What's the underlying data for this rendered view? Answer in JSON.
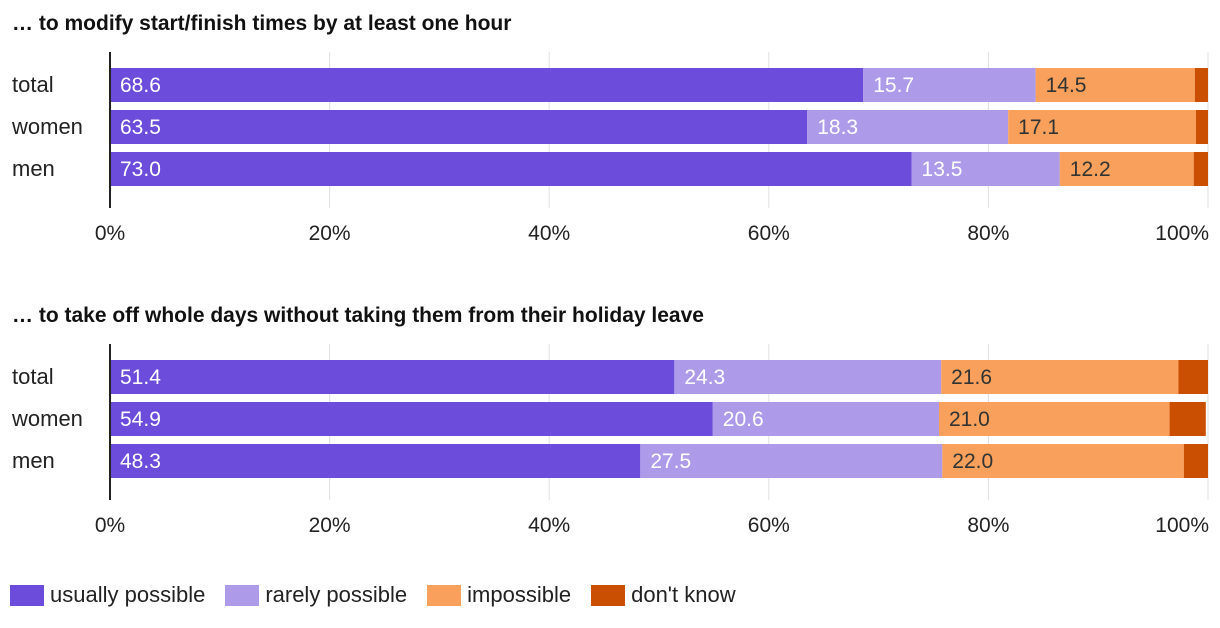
{
  "chart_data": [
    {
      "type": "bar",
      "orientation": "horizontal",
      "stacked": true,
      "title": "… to modify start/finish times by at least one hour",
      "categories": [
        "total",
        "women",
        "men"
      ],
      "series": [
        {
          "name": "usually possible",
          "values": [
            68.6,
            63.5,
            73.0
          ],
          "labels": [
            "68.6",
            "63.5",
            "73.0"
          ]
        },
        {
          "name": "rarely possible",
          "values": [
            15.7,
            18.3,
            13.5
          ],
          "labels": [
            "15.7",
            "18.3",
            "13.5"
          ]
        },
        {
          "name": "impossible",
          "values": [
            14.5,
            17.1,
            12.2
          ],
          "labels": [
            "14.5",
            "17.1",
            "12.2"
          ]
        },
        {
          "name": "don't know",
          "values": [
            1.2,
            1.1,
            1.3
          ],
          "labels": [
            "",
            "",
            ""
          ]
        }
      ],
      "xlim": [
        0,
        100
      ],
      "xticks": [
        "0%",
        "20%",
        "40%",
        "60%",
        "80%",
        "100%"
      ],
      "grid": true,
      "xlabel": "",
      "ylabel": ""
    },
    {
      "type": "bar",
      "orientation": "horizontal",
      "stacked": true,
      "title": "… to take off whole days without taking them from their holiday leave",
      "categories": [
        "total",
        "women",
        "men"
      ],
      "series": [
        {
          "name": "usually possible",
          "values": [
            51.4,
            54.9,
            48.3
          ],
          "labels": [
            "51.4",
            "54.9",
            "48.3"
          ]
        },
        {
          "name": "rarely possible",
          "values": [
            24.3,
            20.6,
            27.5
          ],
          "labels": [
            "24.3",
            "20.6",
            "27.5"
          ]
        },
        {
          "name": "impossible",
          "values": [
            21.6,
            21.0,
            22.0
          ],
          "labels": [
            "21.6",
            "21.0",
            "22.0"
          ]
        },
        {
          "name": "don't know",
          "values": [
            2.7,
            3.3,
            2.2
          ],
          "labels": [
            "",
            "",
            ""
          ]
        }
      ],
      "xlim": [
        0,
        100
      ],
      "xticks": [
        "0%",
        "20%",
        "40%",
        "60%",
        "80%",
        "100%"
      ],
      "grid": true,
      "xlabel": "",
      "ylabel": ""
    }
  ],
  "legend": {
    "position": "bottom-left",
    "items": [
      {
        "label": "usually possible",
        "color": "#6c4cdb"
      },
      {
        "label": "rarely possible",
        "color": "#ad9ae9"
      },
      {
        "label": "impossible",
        "color": "#f9a05c"
      },
      {
        "label": "don't know",
        "color": "#cb4f03"
      }
    ]
  },
  "colors": {
    "series": [
      "#6c4cdb",
      "#ad9ae9",
      "#f9a05c",
      "#cb4f03"
    ],
    "label_on_dark": "#ffffff",
    "label_on_light": "#ffffff",
    "label_on_orange": "#333333",
    "text": "#222222",
    "grid": "#e0e0e0",
    "axis": "#222222"
  }
}
